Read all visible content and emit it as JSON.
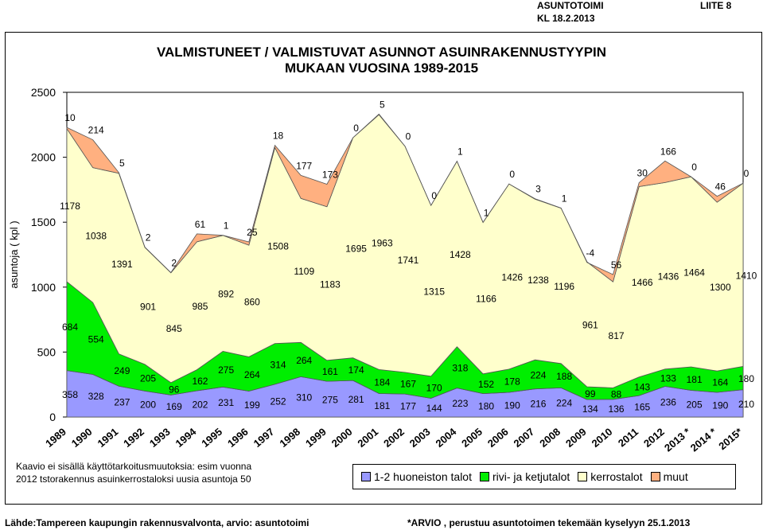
{
  "header": {
    "org": "ASUNTOTOIMI",
    "date": "KL 18.2.2013",
    "appendix": "LIITE 8"
  },
  "title": {
    "line1": "VALMISTUNEET / VALMISTUVAT ASUNNOT ASUINRAKENNUSTYYPIN",
    "line2": "MUKAAN VUOSINA 1989-2015"
  },
  "note": {
    "line1": "Kaavio ei sisällä käyttötarkoitusmuutoksia: esim vuonna",
    "line2": "2012 tstorakennus asuinkerrostaloksi uusia asuntoja 50"
  },
  "footer": {
    "source": "Lähde:Tampereen kaupungin rakennusvalvonta, arvio: asuntotoimi",
    "estimate": "*ARVIO  , perustuu asuntotoimen tekemään kyselyyn 25.1.2013"
  },
  "chart_data": {
    "type": "area",
    "stacked": true,
    "ylabel": "asuntoja ( kpl )",
    "ylim": [
      0,
      2500
    ],
    "yticks": [
      0,
      500,
      1000,
      1500,
      2000,
      2500
    ],
    "categories": [
      "1989",
      "1990",
      "1991",
      "1992",
      "1993",
      "1994",
      "1995",
      "1996",
      "1997",
      "1998",
      "1999",
      "2000",
      "2001",
      "2002",
      "2003",
      "2004",
      "2005",
      "2006",
      "2007",
      "2008",
      "2009",
      "2010",
      "2011",
      "2012",
      "2013 *",
      "2014 *",
      "2015*"
    ],
    "series": [
      {
        "name": "1-2 huoneiston talot",
        "color": "#9999ff",
        "values": [
          358,
          328,
          237,
          200,
          169,
          202,
          231,
          199,
          252,
          310,
          275,
          281,
          181,
          177,
          144,
          223,
          180,
          190,
          216,
          224,
          134,
          136,
          165,
          236,
          205,
          190,
          210
        ]
      },
      {
        "name": "rivi- ja ketjutalot",
        "color": "#00ee00",
        "values": [
          684,
          554,
          249,
          205,
          96,
          162,
          275,
          264,
          314,
          264,
          161,
          174,
          184,
          167,
          170,
          318,
          152,
          178,
          224,
          188,
          99,
          88,
          143,
          133,
          181,
          164,
          180
        ]
      },
      {
        "name": "kerrostalot",
        "color": "#ffffcc",
        "values": [
          1178,
          1038,
          1391,
          901,
          845,
          985,
          892,
          860,
          1508,
          1109,
          1183,
          1695,
          1963,
          1741,
          1315,
          1428,
          1166,
          1426,
          1238,
          1196,
          961,
          817,
          1466,
          1436,
          1464,
          1300,
          1410
        ]
      },
      {
        "name": "muut",
        "color": "#ffb080",
        "values": [
          10,
          214,
          5,
          2,
          2,
          61,
          1,
          25,
          18,
          177,
          173,
          0,
          5,
          0,
          0,
          1,
          1,
          0,
          3,
          1,
          -4,
          56,
          30,
          166,
          0,
          46,
          0
        ]
      }
    ]
  }
}
